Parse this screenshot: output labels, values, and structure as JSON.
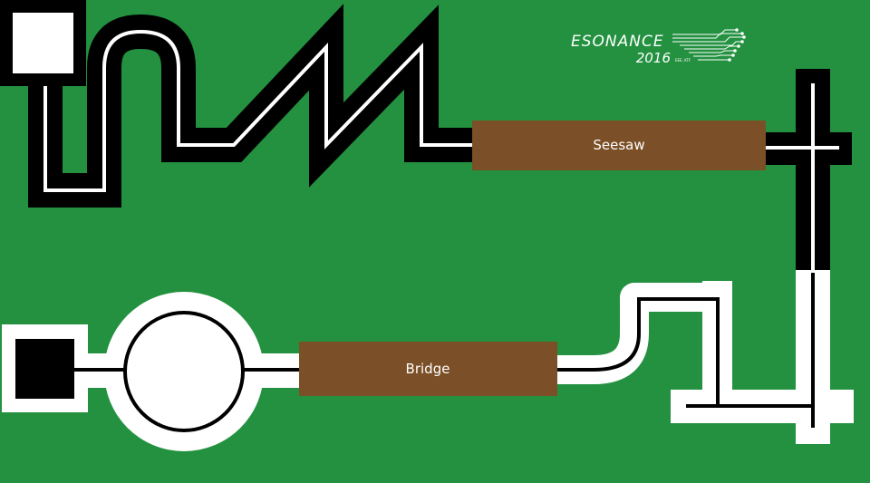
{
  "arena": {
    "background_color": "#239140",
    "track_color": "#000000",
    "line_color": "#ffffff",
    "obstacle_color": "#7b4f27"
  },
  "obstacles": {
    "seesaw_label": "Seesaw",
    "bridge_label": "Bridge"
  },
  "logo": {
    "name": "ESONANCE",
    "year": "2016",
    "tagline": "EEE, KTF"
  }
}
